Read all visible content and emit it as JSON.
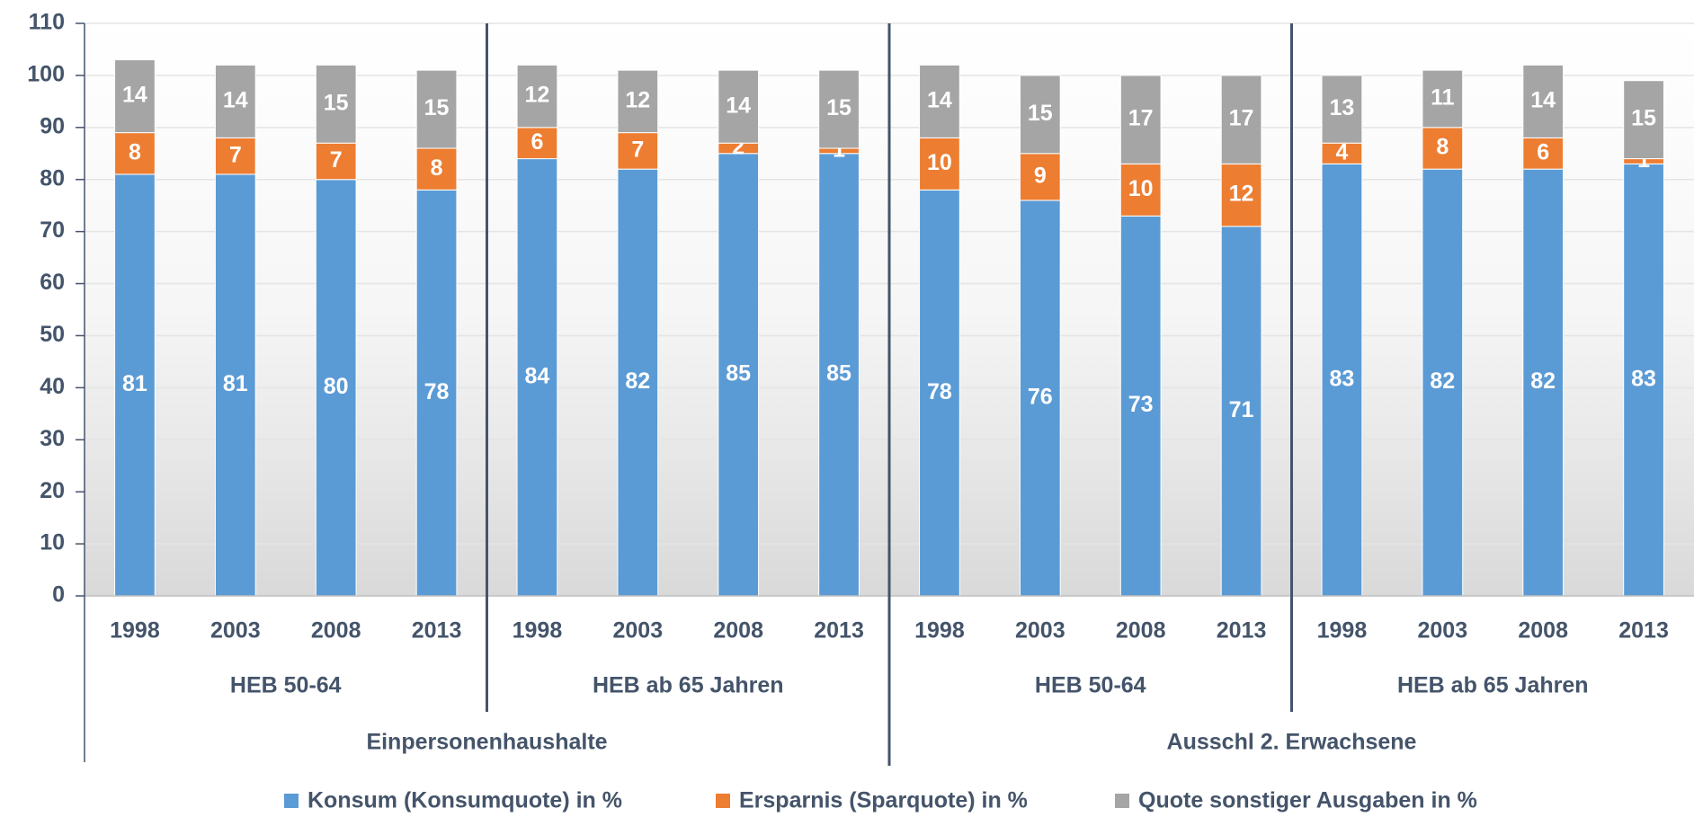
{
  "chart_data": {
    "type": "stacked_bar",
    "categories": [
      "1998",
      "2003",
      "2008",
      "2013",
      "1998",
      "2003",
      "2008",
      "2013",
      "1998",
      "2003",
      "2008",
      "2013",
      "1998",
      "2003",
      "2008",
      "2013"
    ],
    "groups": [
      "HEB 50-64",
      "HEB ab 65 Jahren",
      "HEB 50-64",
      "HEB ab 65 Jahren"
    ],
    "supergroups": [
      "Einpersonenhaushalte",
      "Ausschl 2. Erwachsene"
    ],
    "series": [
      {
        "name": "Konsum (Konsumquote) in %",
        "color": "#5b9bd5",
        "values": [
          81,
          81,
          80,
          78,
          84,
          82,
          85,
          85,
          78,
          76,
          73,
          71,
          83,
          82,
          82,
          83
        ]
      },
      {
        "name": "Ersparnis (Sparquote) in %",
        "color": "#ed7d31",
        "values": [
          8,
          7,
          7,
          8,
          6,
          7,
          2,
          1,
          10,
          9,
          10,
          12,
          4,
          8,
          6,
          1
        ]
      },
      {
        "name": "Quote sonstiger Ausgaben in %",
        "color": "#a5a5a5",
        "values": [
          14,
          14,
          15,
          15,
          12,
          12,
          14,
          15,
          14,
          15,
          17,
          17,
          13,
          11,
          14,
          15
        ]
      }
    ],
    "ylim": [
      0,
      110
    ],
    "yticks": [
      0,
      10,
      20,
      30,
      40,
      50,
      60,
      70,
      80,
      90,
      100,
      110
    ],
    "grid": true,
    "legend": "bottom"
  }
}
